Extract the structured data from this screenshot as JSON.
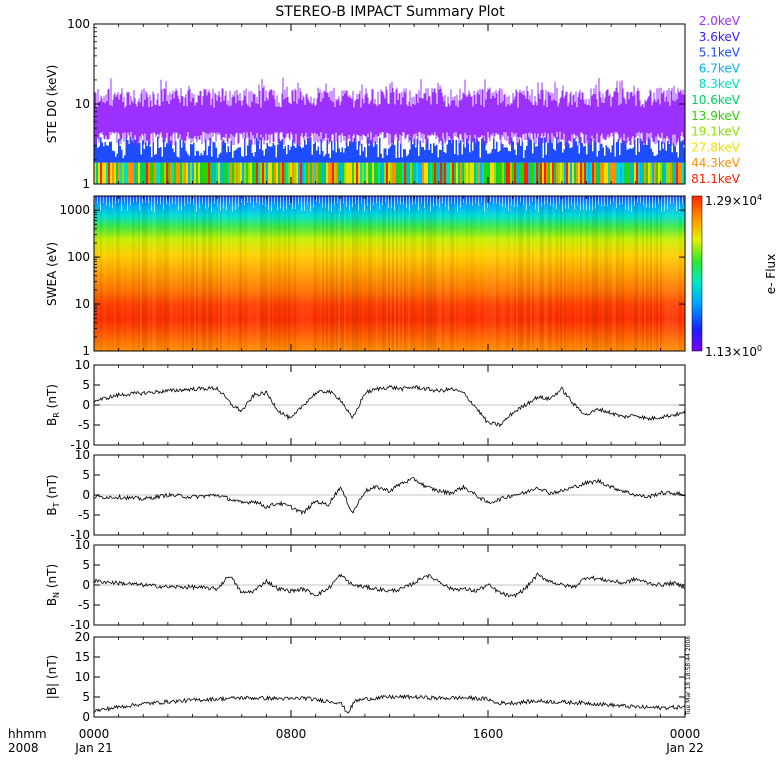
{
  "chart_data": {
    "type": "line",
    "title": "STEREO-B IMPACT Summary Plot",
    "x_axis": {
      "label_line1": "hhmm",
      "label_line2": "2008",
      "range_hours": [
        0,
        24
      ],
      "ticks": [
        {
          "hour": 0,
          "label": "0000",
          "sub": "Jan 21"
        },
        {
          "hour": 8,
          "label": "0800",
          "sub": ""
        },
        {
          "hour": 16,
          "label": "1600",
          "sub": ""
        },
        {
          "hour": 24,
          "label": "0000",
          "sub": "Jan 22"
        }
      ]
    },
    "panels": [
      {
        "id": "ste",
        "type": "line",
        "ylabel": "STE D0 (keV)",
        "yscale": "log",
        "ylim": [
          1,
          100
        ],
        "yticks": [
          "1",
          "10",
          "100"
        ],
        "legend_placement": "right",
        "channels": [
          {
            "name": "2.0keV",
            "color": "#9b30ff"
          },
          {
            "name": "3.6keV",
            "color": "#3a1aff"
          },
          {
            "name": "5.1keV",
            "color": "#1e4cff"
          },
          {
            "name": "6.7keV",
            "color": "#00b4ff"
          },
          {
            "name": "8.3keV",
            "color": "#00e0c0"
          },
          {
            "name": "10.6keV",
            "color": "#00d060"
          },
          {
            "name": "13.9keV",
            "color": "#30d000"
          },
          {
            "name": "19.1keV",
            "color": "#90e000"
          },
          {
            "name": "27.8keV",
            "color": "#f0e000"
          },
          {
            "name": "44.3keV",
            "color": "#ff9000"
          },
          {
            "name": "81.1keV",
            "color": "#ff2000"
          }
        ]
      },
      {
        "id": "swea",
        "type": "heatmap",
        "ylabel": "SWEA (eV)",
        "yscale": "log",
        "ylim": [
          1,
          2000
        ],
        "yticks": [
          "1",
          "10",
          "100",
          "1000"
        ],
        "colorbar": {
          "label": "e- Flux",
          "max_mant": "1.29",
          "max_exp": "4",
          "min_mant": "1.13",
          "min_exp": "0"
        }
      },
      {
        "id": "br",
        "type": "line",
        "ylabel_main": "B",
        "ylabel_sub": "R",
        "ylabel_unit": " (nT)",
        "ylim": [
          -10,
          10
        ],
        "yticks": [
          "-10",
          "-5",
          "0",
          "5",
          "10"
        ],
        "x_hours": [
          0,
          1,
          2,
          3,
          4,
          5,
          5.6,
          6,
          6.5,
          7,
          7.5,
          8,
          8.5,
          9,
          9.5,
          10,
          10.5,
          11,
          11.5,
          12,
          12.5,
          13,
          13.5,
          14,
          14.5,
          15,
          15.5,
          16,
          16.5,
          17,
          17.5,
          18,
          18.5,
          19,
          19.5,
          20,
          20.5,
          21,
          21.5,
          22,
          22.5,
          23,
          23.5,
          24
        ],
        "values": [
          1,
          2.5,
          3,
          3.5,
          4,
          4.2,
          0,
          -1.5,
          2.5,
          3,
          -1.5,
          -3.5,
          0,
          3,
          3.5,
          1.5,
          -3.5,
          3,
          4,
          4.5,
          4,
          4.5,
          4,
          3.5,
          4,
          3,
          -0.5,
          -4.5,
          -5,
          -2,
          0,
          2,
          1.5,
          4,
          0,
          -2.5,
          -1,
          -2,
          -3,
          -2.5,
          -3.5,
          -3,
          -2.5,
          -2
        ]
      },
      {
        "id": "bt",
        "type": "line",
        "ylabel_main": "B",
        "ylabel_sub": "T",
        "ylabel_unit": " (nT)",
        "ylim": [
          -10,
          10
        ],
        "yticks": [
          "-10",
          "-5",
          "0",
          "5",
          "10"
        ],
        "x_hours": [
          0,
          1,
          2,
          3,
          4,
          5,
          6,
          6.5,
          7,
          7.5,
          8,
          8.5,
          9,
          9.5,
          10,
          10.5,
          11,
          11.5,
          12,
          12.5,
          13,
          13.5,
          14,
          14.5,
          15,
          15.5,
          16,
          16.5,
          17,
          17.5,
          18,
          18.5,
          19,
          19.5,
          20,
          20.5,
          21,
          21.5,
          22,
          22.5,
          23,
          23.5,
          24
        ],
        "values": [
          -0.5,
          -0.5,
          -1,
          0,
          -0.5,
          0,
          -2,
          -1.5,
          -3,
          -2,
          -3,
          -4.5,
          -1.5,
          -2.5,
          2,
          -4.5,
          1,
          2,
          1,
          3,
          4,
          2,
          1,
          0.5,
          2,
          0,
          -2,
          -1,
          0,
          0.5,
          2,
          0.5,
          1,
          2,
          3,
          3.5,
          2,
          1,
          0,
          -0.5,
          0.5,
          0.5,
          0
        ]
      },
      {
        "id": "bn",
        "type": "line",
        "ylabel_main": "B",
        "ylabel_sub": "N",
        "ylabel_unit": " (nT)",
        "ylim": [
          -10,
          10
        ],
        "yticks": [
          "-10",
          "-5",
          "0",
          "5",
          "10"
        ],
        "x_hours": [
          0,
          1,
          2,
          3,
          4,
          5,
          5.5,
          6,
          6.5,
          7,
          7.5,
          8,
          8.5,
          9,
          9.5,
          10,
          10.5,
          11,
          11.5,
          12,
          12.5,
          13,
          13.5,
          14,
          14.5,
          15,
          15.5,
          16,
          16.5,
          17,
          17.5,
          18,
          18.5,
          19,
          19.5,
          20,
          20.5,
          21,
          21.5,
          22,
          22.5,
          23,
          23.5,
          24
        ],
        "values": [
          1,
          0.5,
          0,
          -0.5,
          -0.5,
          -1,
          2.5,
          -2,
          -1.5,
          1,
          -1,
          -1.5,
          -1,
          -2.5,
          -1,
          2.5,
          0,
          -0.5,
          -1,
          -1.5,
          -1,
          0.5,
          2.5,
          1,
          -1,
          -1,
          -1.5,
          0,
          -2,
          -3,
          -1,
          2.5,
          1,
          0,
          -0.5,
          2,
          1.5,
          1,
          0.5,
          1.5,
          0.5,
          0,
          0.5,
          -0.5
        ]
      },
      {
        "id": "bmag",
        "type": "line",
        "ylabel_main": "|B|",
        "ylabel_sub": "",
        "ylabel_unit": " (nT)",
        "ylim": [
          0,
          20
        ],
        "yticks": [
          "0",
          "5",
          "10",
          "15",
          "20"
        ],
        "x_hours": [
          0,
          1,
          2,
          3,
          4,
          5,
          6,
          7,
          8,
          8.5,
          9,
          9.5,
          10,
          10.3,
          10.6,
          11,
          12,
          13,
          14,
          15,
          16,
          16.3,
          17,
          18,
          19,
          20,
          21,
          22,
          23,
          24
        ],
        "values": [
          1.5,
          2.5,
          3.3,
          3.8,
          4.2,
          4.5,
          4.8,
          4.7,
          4.5,
          4.8,
          4.3,
          4,
          3.6,
          1,
          4,
          4.5,
          5,
          5,
          4.7,
          4.8,
          4.5,
          3.5,
          3.5,
          4,
          3.7,
          3.5,
          3,
          2.5,
          2.3,
          2.5
        ]
      }
    ]
  },
  "timestamp": "Tue Mar 18 18:58:44 2008"
}
